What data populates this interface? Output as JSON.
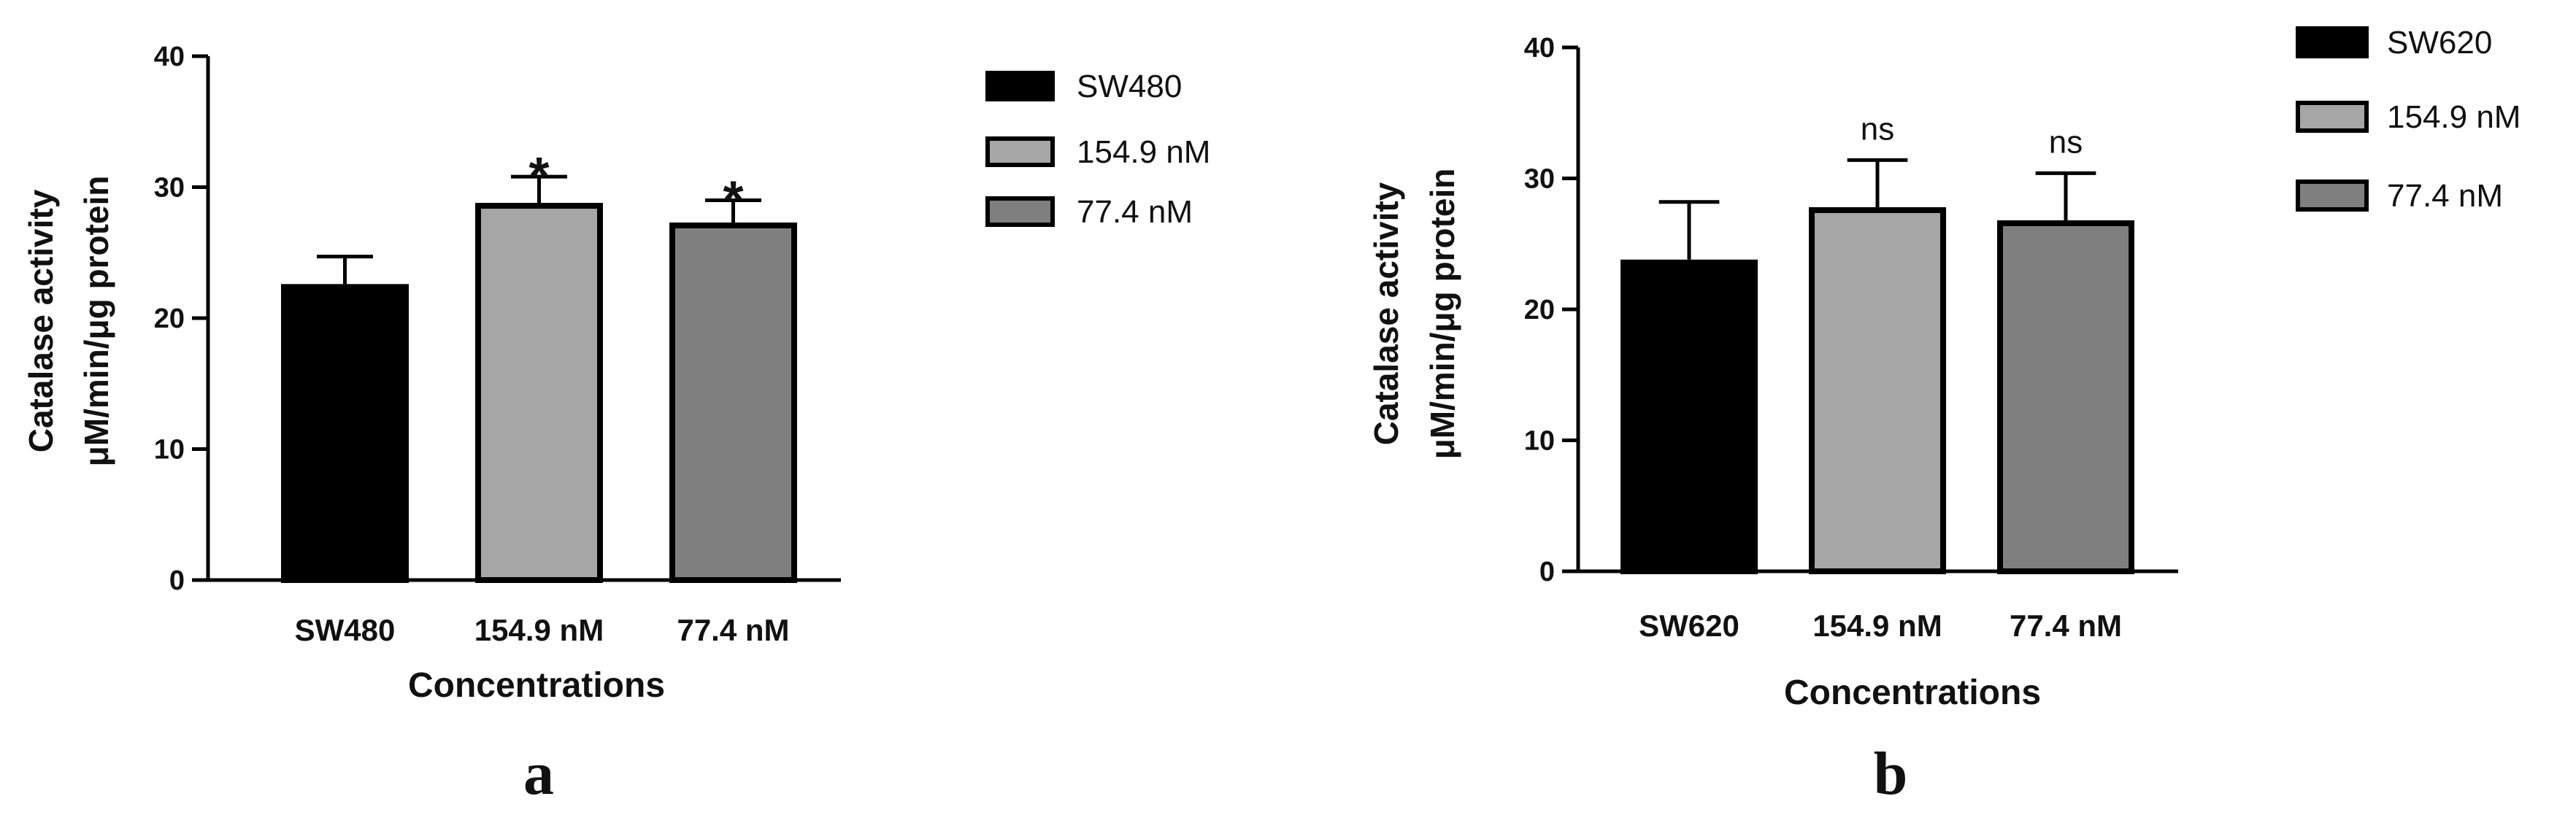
{
  "chart_data": [
    {
      "type": "bar",
      "panel_label": "a",
      "categories": [
        "SW480",
        "154.9 nM",
        "77.4 nM"
      ],
      "values": [
        22.6,
        28.8,
        27.3
      ],
      "error": [
        2.1,
        2.0,
        1.7
      ],
      "significance": [
        "",
        "*",
        "*"
      ],
      "colors": [
        "#000000",
        "#a6a6a6",
        "#7f7f7f"
      ],
      "xlabel": "Concentrations",
      "ylabel_lines": [
        "Catalase activity",
        "μM/min/μg protein"
      ],
      "ylim": [
        0,
        40
      ],
      "yticks": [
        0,
        10,
        20,
        30,
        40
      ],
      "legend": {
        "placement": "right",
        "entries": [
          "SW480",
          "154.9 nM",
          "77.4 nM"
        ]
      },
      "grid": false
    },
    {
      "type": "bar",
      "panel_label": "b",
      "categories": [
        "SW620",
        "154.9 nM",
        "77.4 nM"
      ],
      "values": [
        23.8,
        27.8,
        26.8
      ],
      "error": [
        4.4,
        3.6,
        3.6
      ],
      "significance": [
        "",
        "ns",
        "ns"
      ],
      "colors": [
        "#000000",
        "#a6a6a6",
        "#7f7f7f"
      ],
      "xlabel": "Concentrations",
      "ylabel_lines": [
        "Catalase activity",
        "μM/min/μg protein"
      ],
      "ylim": [
        0,
        40
      ],
      "yticks": [
        0,
        10,
        20,
        30,
        40
      ],
      "legend": {
        "placement": "top-right",
        "entries": [
          "SW620",
          "154.9 nM",
          "77.4 nM"
        ]
      },
      "grid": false
    }
  ]
}
